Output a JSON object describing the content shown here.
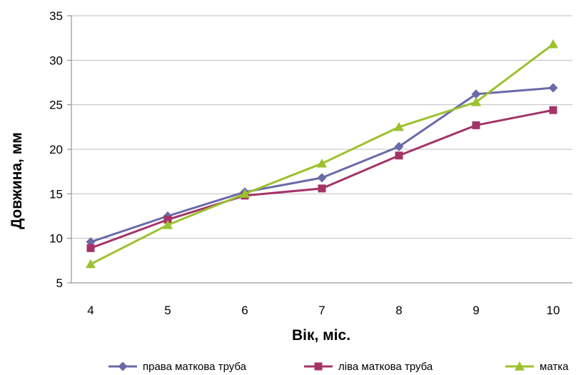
{
  "chart_data": {
    "type": "line",
    "x": [
      4,
      5,
      6,
      7,
      8,
      9,
      10
    ],
    "xlabel": "Вік, міс.",
    "ylabel": "Довжина, мм",
    "ylim": [
      5,
      35
    ],
    "yticks": [
      5,
      10,
      15,
      20,
      25,
      30,
      35
    ],
    "grid": true,
    "legend_position": "bottom",
    "series": [
      {
        "name": "права маткова труба",
        "color": "#6a6aa8",
        "marker": "diamond",
        "values": [
          9.6,
          12.5,
          15.2,
          16.8,
          20.3,
          26.2,
          26.9
        ]
      },
      {
        "name": "ліва маткова труба",
        "color": "#a33468",
        "marker": "square",
        "values": [
          8.9,
          12.1,
          14.8,
          15.6,
          19.3,
          22.7,
          24.4
        ]
      },
      {
        "name": "матка",
        "color": "#9cc12e",
        "marker": "triangle",
        "values": [
          7.1,
          11.5,
          15.0,
          18.4,
          22.5,
          25.3,
          31.8
        ]
      }
    ]
  }
}
